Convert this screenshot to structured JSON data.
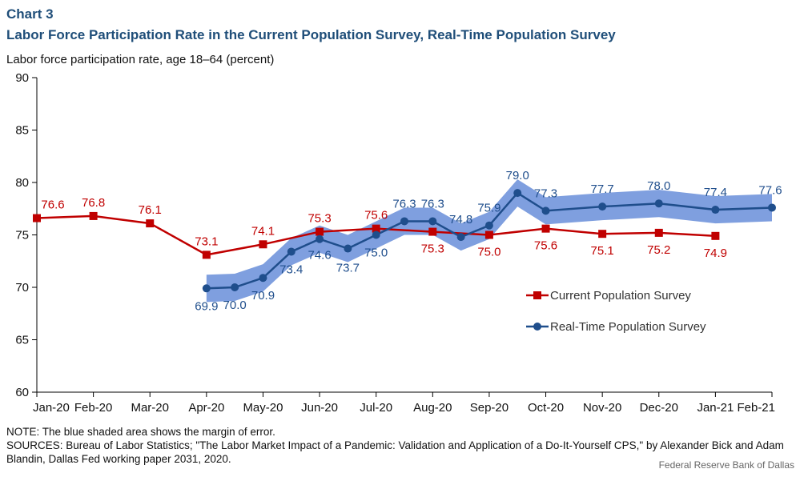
{
  "header": {
    "chart_number": "Chart 3",
    "title": "Labor Force Participation Rate in the Current Population Survey, Real-Time Population Survey",
    "y_axis_label": "Labor force participation rate, age 18–64 (percent)"
  },
  "footer": {
    "note": "NOTE: The blue shaded area shows the margin of error.",
    "sources": "SOURCES: Bureau of Labor Statistics; \"The Labor Market Impact of a Pandemic: Validation and Application of a Do-It-Yourself CPS,\" by Alexander Bick and Adam Blandin, Dallas Fed working paper 2031, 2020.",
    "credit": "Federal Reserve Bank of Dallas"
  },
  "chart_data": {
    "type": "line",
    "ylim": [
      60,
      90
    ],
    "yticks": [
      60,
      65,
      70,
      75,
      80,
      85,
      90
    ],
    "x_tick_labels": [
      "Jan-20",
      "Feb-20",
      "Mar-20",
      "Apr-20",
      "May-20",
      "Jun-20",
      "Jul-20",
      "Aug-20",
      "Sep-20",
      "Oct-20",
      "Nov-20",
      "Dec-20",
      "Jan-21",
      "Feb-21"
    ],
    "grid": false,
    "legend_position": "right",
    "series": [
      {
        "name": "Current Population Survey",
        "color": "#c00000",
        "marker": "square",
        "x": [
          0,
          1,
          2,
          3,
          4,
          5,
          6,
          7,
          8,
          9,
          10,
          11,
          12
        ],
        "values": [
          76.6,
          76.8,
          76.1,
          73.1,
          74.1,
          75.3,
          75.6,
          75.3,
          75.0,
          75.6,
          75.1,
          75.2,
          74.9
        ]
      },
      {
        "name": "Real-Time Population Survey",
        "color": "#1f4e8c",
        "band_color": "#7f9fdf",
        "marker": "circle",
        "x": [
          3,
          3.5,
          4,
          4.5,
          5,
          5.5,
          6,
          6.5,
          7,
          7.5,
          8,
          8.5,
          9,
          10,
          11,
          12,
          13
        ],
        "values": [
          69.9,
          70.0,
          70.9,
          73.4,
          74.6,
          73.7,
          75.0,
          76.3,
          76.3,
          74.8,
          75.9,
          79.0,
          77.3,
          77.7,
          78.0,
          77.4,
          77.6
        ],
        "margin_of_error": 1.3
      }
    ]
  }
}
